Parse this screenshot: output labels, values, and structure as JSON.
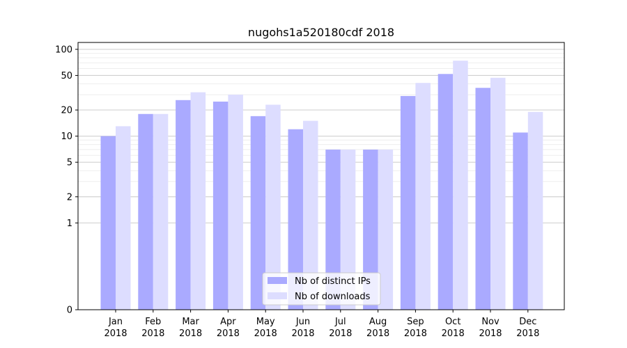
{
  "chart_data": {
    "type": "bar",
    "title": "nugohs1a520180cdf 2018",
    "xlabel": "",
    "ylabel": "",
    "yscale": "symlog",
    "ylim": [
      0,
      120
    ],
    "yticks": [
      0,
      1,
      2,
      5,
      10,
      20,
      50,
      100
    ],
    "yticklabels": [
      "0",
      "1",
      "2",
      "5",
      "10",
      "20",
      "50",
      "100"
    ],
    "categories": [
      {
        "month": "Jan",
        "year": "2018"
      },
      {
        "month": "Feb",
        "year": "2018"
      },
      {
        "month": "Mar",
        "year": "2018"
      },
      {
        "month": "Apr",
        "year": "2018"
      },
      {
        "month": "May",
        "year": "2018"
      },
      {
        "month": "Jun",
        "year": "2018"
      },
      {
        "month": "Jul",
        "year": "2018"
      },
      {
        "month": "Aug",
        "year": "2018"
      },
      {
        "month": "Sep",
        "year": "2018"
      },
      {
        "month": "Oct",
        "year": "2018"
      },
      {
        "month": "Nov",
        "year": "2018"
      },
      {
        "month": "Dec",
        "year": "2018"
      }
    ],
    "series": [
      {
        "name": "Nb of distinct IPs",
        "color": "#aaaaff",
        "values": [
          10,
          18,
          26,
          25,
          17,
          12,
          7,
          7,
          29,
          52,
          36,
          11
        ]
      },
      {
        "name": "Nb of downloads",
        "color": "#ddddff",
        "values": [
          13,
          18,
          32,
          30,
          23,
          15,
          7,
          7,
          41,
          74,
          47,
          19
        ]
      }
    ],
    "grid": true,
    "legend_position": "bottom-center"
  }
}
